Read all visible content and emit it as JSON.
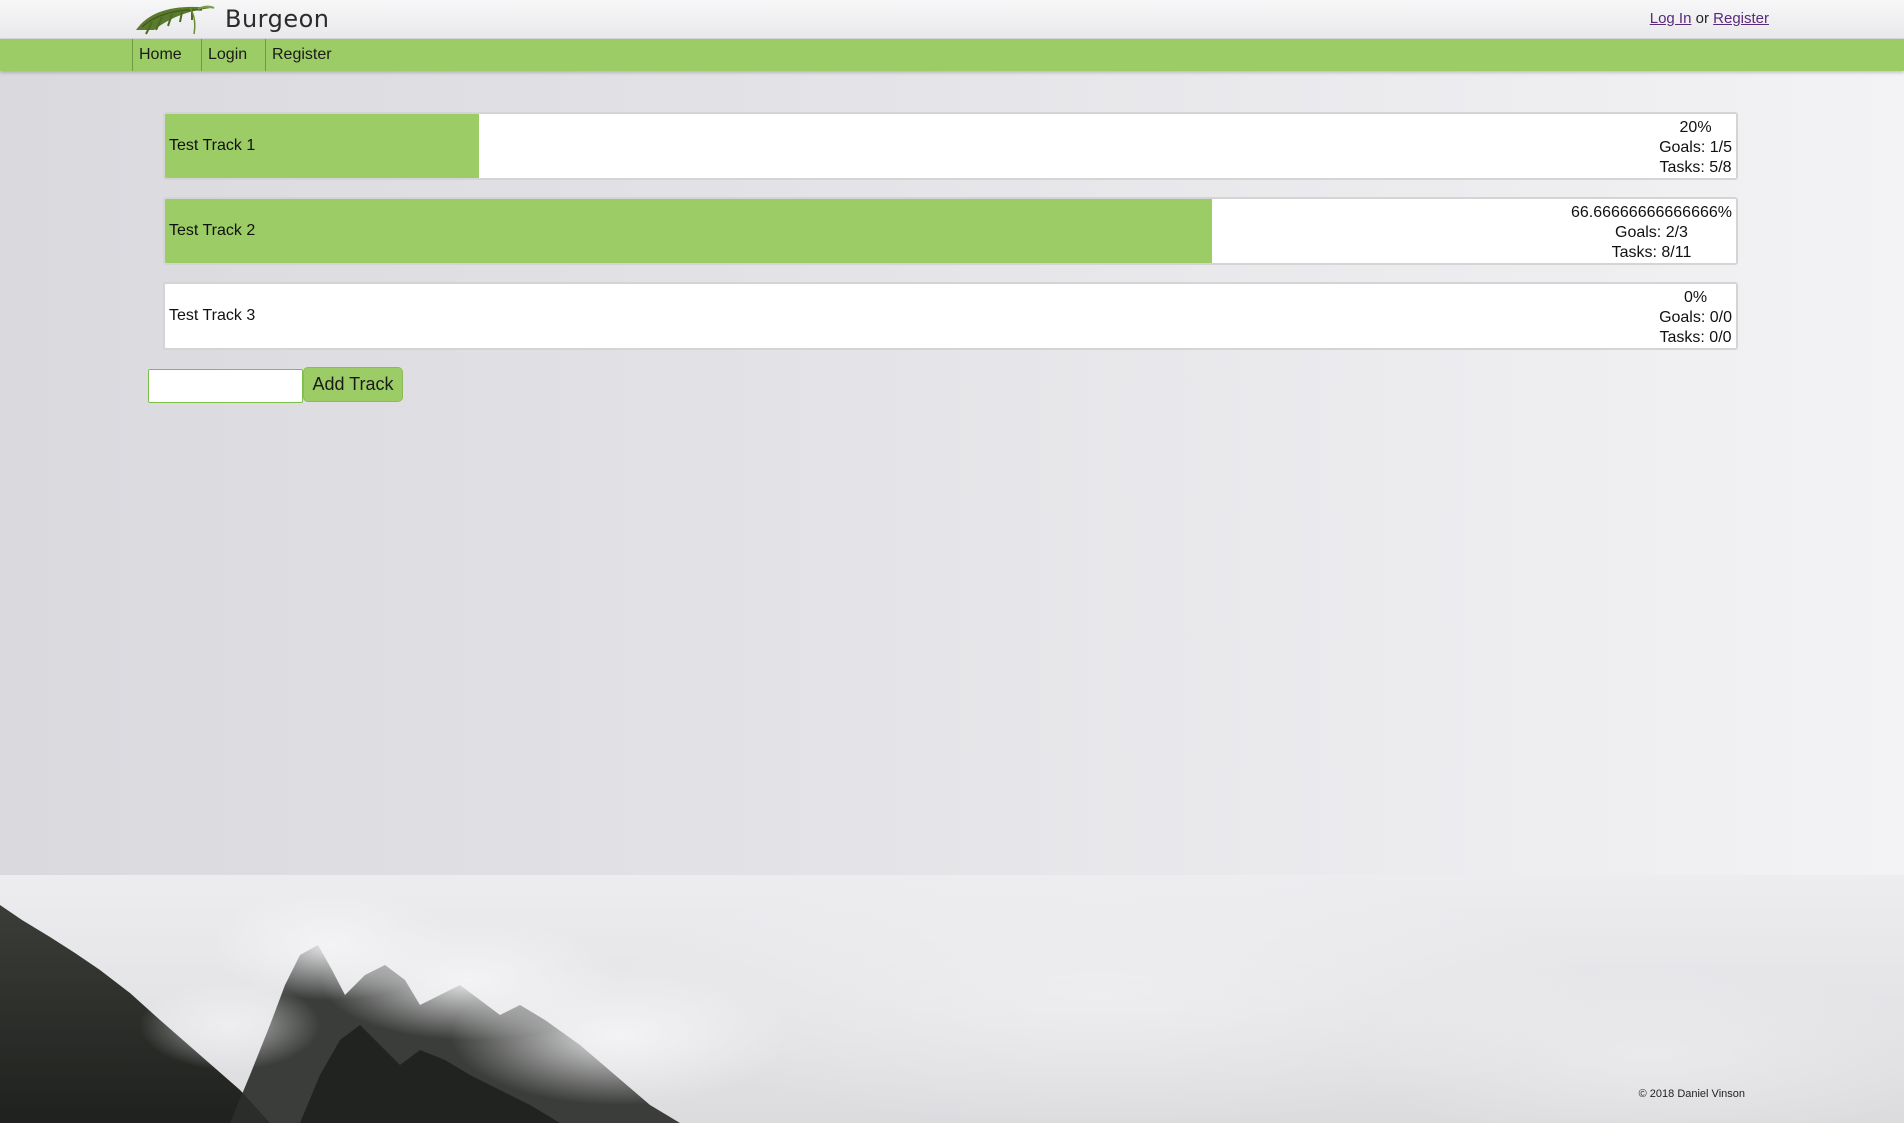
{
  "header": {
    "brand": "Burgeon",
    "logo_icon": "leaf-logo-icon",
    "auth_login": "Log In",
    "auth_or": "or",
    "auth_register": "Register"
  },
  "nav": {
    "items": [
      {
        "label": "Home"
      },
      {
        "label": "Login"
      },
      {
        "label": "Register"
      }
    ]
  },
  "tracks": [
    {
      "name": "Test Track 1",
      "progress_fraction": 0.2,
      "percent": "20%",
      "goals": "Goals: 1/5",
      "tasks": "Tasks: 5/8"
    },
    {
      "name": "Test Track 2",
      "progress_fraction": 0.6667,
      "percent": "66.66666666666666%",
      "goals": "Goals: 2/3",
      "tasks": "Tasks: 8/11"
    },
    {
      "name": "Test Track 3",
      "progress_fraction": 0,
      "percent": "0%",
      "goals": "Goals: 0/0",
      "tasks": "Tasks: 0/0"
    }
  ],
  "add_track": {
    "input_value": "",
    "button_label": "Add Track"
  },
  "footer": {
    "copyright": "© 2018 Daniel Vinson"
  },
  "colors": {
    "accent_green": "#9ccc66",
    "link_purple": "#5a2a7a"
  }
}
